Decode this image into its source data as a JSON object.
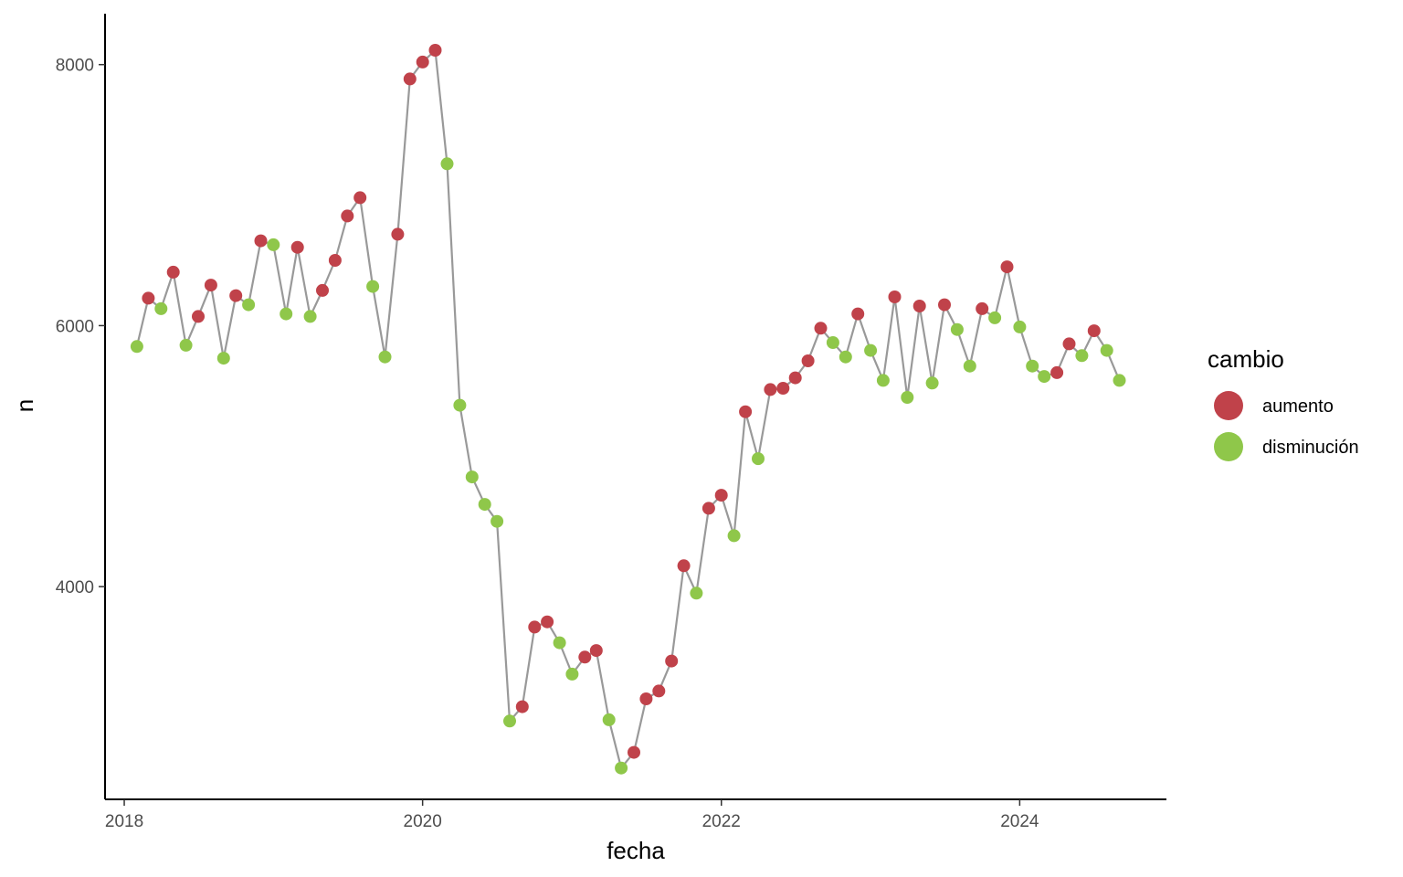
{
  "chart_data": {
    "type": "line",
    "title": "",
    "xlabel": "fecha",
    "ylabel": "n",
    "x_ticks": [
      2018,
      2020,
      2022,
      2024
    ],
    "y_ticks": [
      4000,
      6000,
      8000
    ],
    "xlim": [
      "2017-11-15",
      "2024-12-25"
    ],
    "ylim": [
      2370,
      8390
    ],
    "grid": false,
    "line_color": "#999999",
    "legend": {
      "title": "cambio",
      "position": "right",
      "entries": [
        {
          "name": "aumento",
          "color": "#C0424A"
        },
        {
          "name": "disminución",
          "color": "#8FC74A"
        }
      ]
    },
    "points": [
      {
        "x": "2018-02",
        "y": 5840,
        "cambio": "disminución"
      },
      {
        "x": "2018-03",
        "y": 6210,
        "cambio": "aumento"
      },
      {
        "x": "2018-04",
        "y": 6130,
        "cambio": "disminución"
      },
      {
        "x": "2018-05",
        "y": 6410,
        "cambio": "aumento"
      },
      {
        "x": "2018-06",
        "y": 5850,
        "cambio": "disminución"
      },
      {
        "x": "2018-07",
        "y": 6070,
        "cambio": "aumento"
      },
      {
        "x": "2018-08",
        "y": 6310,
        "cambio": "aumento"
      },
      {
        "x": "2018-09",
        "y": 5750,
        "cambio": "disminución"
      },
      {
        "x": "2018-10",
        "y": 6230,
        "cambio": "aumento"
      },
      {
        "x": "2018-11",
        "y": 6160,
        "cambio": "disminución"
      },
      {
        "x": "2018-12",
        "y": 6650,
        "cambio": "aumento"
      },
      {
        "x": "2019-01",
        "y": 6620,
        "cambio": "disminución"
      },
      {
        "x": "2019-02",
        "y": 6090,
        "cambio": "disminución"
      },
      {
        "x": "2019-03",
        "y": 6600,
        "cambio": "aumento"
      },
      {
        "x": "2019-04",
        "y": 6070,
        "cambio": "disminución"
      },
      {
        "x": "2019-05",
        "y": 6270,
        "cambio": "aumento"
      },
      {
        "x": "2019-06",
        "y": 6500,
        "cambio": "aumento"
      },
      {
        "x": "2019-07",
        "y": 6840,
        "cambio": "aumento"
      },
      {
        "x": "2019-08",
        "y": 6980,
        "cambio": "aumento"
      },
      {
        "x": "2019-09",
        "y": 6300,
        "cambio": "disminución"
      },
      {
        "x": "2019-10",
        "y": 5760,
        "cambio": "disminución"
      },
      {
        "x": "2019-11",
        "y": 6700,
        "cambio": "aumento"
      },
      {
        "x": "2019-12",
        "y": 7890,
        "cambio": "aumento"
      },
      {
        "x": "2020-01",
        "y": 8020,
        "cambio": "aumento"
      },
      {
        "x": "2020-02",
        "y": 8110,
        "cambio": "aumento"
      },
      {
        "x": "2020-03",
        "y": 7240,
        "cambio": "disminución"
      },
      {
        "x": "2020-04",
        "y": 5390,
        "cambio": "disminución"
      },
      {
        "x": "2020-05",
        "y": 4840,
        "cambio": "disminución"
      },
      {
        "x": "2020-06",
        "y": 4630,
        "cambio": "disminución"
      },
      {
        "x": "2020-07",
        "y": 4500,
        "cambio": "disminución"
      },
      {
        "x": "2020-08",
        "y": 2970,
        "cambio": "disminución"
      },
      {
        "x": "2020-09",
        "y": 3080,
        "cambio": "aumento"
      },
      {
        "x": "2020-10",
        "y": 3690,
        "cambio": "aumento"
      },
      {
        "x": "2020-11",
        "y": 3730,
        "cambio": "aumento"
      },
      {
        "x": "2020-12",
        "y": 3570,
        "cambio": "disminución"
      },
      {
        "x": "2021-01",
        "y": 3330,
        "cambio": "disminución"
      },
      {
        "x": "2021-02",
        "y": 3460,
        "cambio": "aumento"
      },
      {
        "x": "2021-03",
        "y": 3510,
        "cambio": "aumento"
      },
      {
        "x": "2021-04",
        "y": 2980,
        "cambio": "disminución"
      },
      {
        "x": "2021-05",
        "y": 2610,
        "cambio": "disminución"
      },
      {
        "x": "2021-06",
        "y": 2730,
        "cambio": "aumento"
      },
      {
        "x": "2021-07",
        "y": 3140,
        "cambio": "aumento"
      },
      {
        "x": "2021-08",
        "y": 3200,
        "cambio": "aumento"
      },
      {
        "x": "2021-09",
        "y": 3430,
        "cambio": "aumento"
      },
      {
        "x": "2021-10",
        "y": 4160,
        "cambio": "aumento"
      },
      {
        "x": "2021-11",
        "y": 3950,
        "cambio": "disminución"
      },
      {
        "x": "2021-12",
        "y": 4600,
        "cambio": "aumento"
      },
      {
        "x": "2022-01",
        "y": 4700,
        "cambio": "aumento"
      },
      {
        "x": "2022-02",
        "y": 4390,
        "cambio": "disminución"
      },
      {
        "x": "2022-03",
        "y": 5340,
        "cambio": "aumento"
      },
      {
        "x": "2022-04",
        "y": 4980,
        "cambio": "disminución"
      },
      {
        "x": "2022-05",
        "y": 5510,
        "cambio": "aumento"
      },
      {
        "x": "2022-06",
        "y": 5520,
        "cambio": "aumento"
      },
      {
        "x": "2022-07",
        "y": 5600,
        "cambio": "aumento"
      },
      {
        "x": "2022-08",
        "y": 5730,
        "cambio": "aumento"
      },
      {
        "x": "2022-09",
        "y": 5980,
        "cambio": "aumento"
      },
      {
        "x": "2022-10",
        "y": 5870,
        "cambio": "disminución"
      },
      {
        "x": "2022-11",
        "y": 5760,
        "cambio": "disminución"
      },
      {
        "x": "2022-12",
        "y": 6090,
        "cambio": "aumento"
      },
      {
        "x": "2023-01",
        "y": 5810,
        "cambio": "disminución"
      },
      {
        "x": "2023-02",
        "y": 5580,
        "cambio": "disminución"
      },
      {
        "x": "2023-03",
        "y": 6220,
        "cambio": "aumento"
      },
      {
        "x": "2023-04",
        "y": 5450,
        "cambio": "disminución"
      },
      {
        "x": "2023-05",
        "y": 6150,
        "cambio": "aumento"
      },
      {
        "x": "2023-06",
        "y": 5560,
        "cambio": "disminución"
      },
      {
        "x": "2023-07",
        "y": 6160,
        "cambio": "aumento"
      },
      {
        "x": "2023-08",
        "y": 5970,
        "cambio": "disminución"
      },
      {
        "x": "2023-09",
        "y": 5690,
        "cambio": "disminución"
      },
      {
        "x": "2023-10",
        "y": 6130,
        "cambio": "aumento"
      },
      {
        "x": "2023-11",
        "y": 6060,
        "cambio": "disminución"
      },
      {
        "x": "2023-12",
        "y": 6450,
        "cambio": "aumento"
      },
      {
        "x": "2024-01",
        "y": 5990,
        "cambio": "disminución"
      },
      {
        "x": "2024-02",
        "y": 5690,
        "cambio": "disminución"
      },
      {
        "x": "2024-03",
        "y": 5610,
        "cambio": "disminución"
      },
      {
        "x": "2024-04",
        "y": 5640,
        "cambio": "aumento"
      },
      {
        "x": "2024-05",
        "y": 5860,
        "cambio": "aumento"
      },
      {
        "x": "2024-06",
        "y": 5770,
        "cambio": "disminución"
      },
      {
        "x": "2024-07",
        "y": 5960,
        "cambio": "aumento"
      },
      {
        "x": "2024-08",
        "y": 5810,
        "cambio": "disminución"
      },
      {
        "x": "2024-09",
        "y": 5580,
        "cambio": "disminución"
      }
    ]
  }
}
